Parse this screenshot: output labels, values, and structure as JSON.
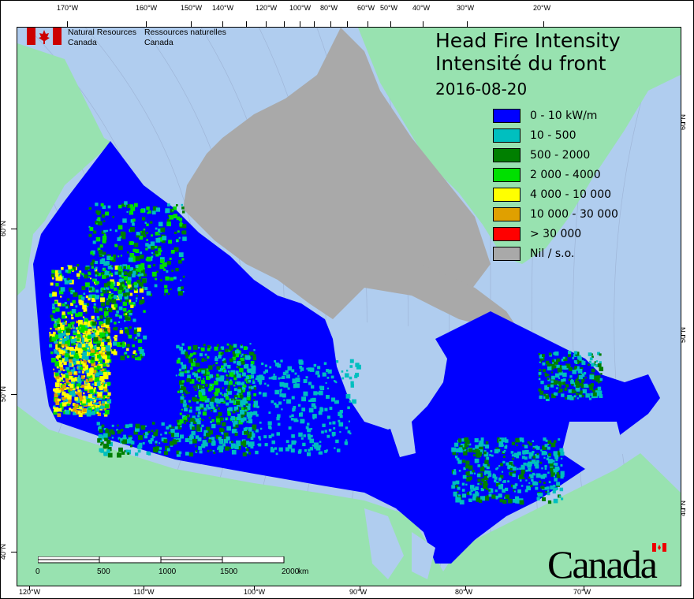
{
  "logo": {
    "en_line1": "Natural Resources",
    "en_line2": "Canada",
    "fr_line1": "Ressources naturelles",
    "fr_line2": "Canada"
  },
  "title": {
    "line1": "Head Fire Intensity",
    "line2": "Intensité du front",
    "date": "2016-08-20"
  },
  "legend": [
    {
      "label": "0 - 10 kW/m",
      "color": "#0000ff"
    },
    {
      "label": "10 - 500",
      "color": "#00bfbf"
    },
    {
      "label": "500 - 2000",
      "color": "#007f00"
    },
    {
      "label": "2 000 - 4000",
      "color": "#00e000"
    },
    {
      "label": "4 000 - 10 000",
      "color": "#ffff00"
    },
    {
      "label": "10 000 - 30 000",
      "color": "#e0a000"
    },
    {
      "label": "> 30 000",
      "color": "#ff0000"
    },
    {
      "label": "Nil / s.o.",
      "color": "#a9a9a9"
    }
  ],
  "colors": {
    "ocean": "#b0cdef",
    "land": "#98e2b0",
    "nodata": "#a9a9a9"
  },
  "axes": {
    "top": [
      "170°W",
      "160°W",
      "150°W",
      "140°W",
      "120°W",
      "100°W",
      "80°W",
      "60°W",
      "50°W",
      "40°W",
      "30°W",
      "20°W"
    ],
    "bottom": [
      "120°W",
      "110°W",
      "100°W",
      "90°W",
      "80°W",
      "70°W"
    ],
    "left": [
      "60°N",
      "50°N",
      "40°N"
    ],
    "right": [
      "60°N",
      "50°N",
      "40°N"
    ]
  },
  "scale": {
    "labels": [
      "0",
      "500",
      "1000",
      "1500",
      "2000"
    ],
    "unit": "km"
  },
  "wordmark": "Canada"
}
